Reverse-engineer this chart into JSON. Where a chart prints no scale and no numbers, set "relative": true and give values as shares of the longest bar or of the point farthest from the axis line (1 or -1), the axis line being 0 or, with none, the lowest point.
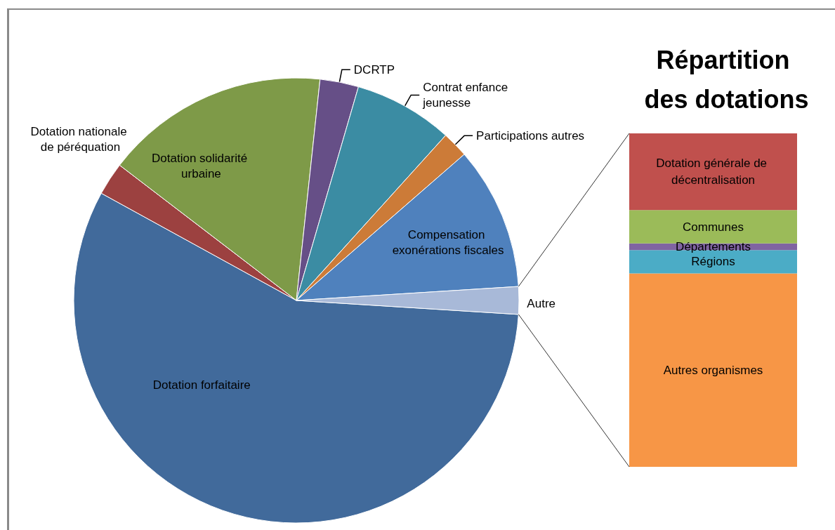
{
  "chart_data": [
    {
      "type": "pie",
      "categories": [
        "Dotation forfaitaire",
        "Dotation nationale de péréquation",
        "Dotation solidarité urbaine",
        "DCRTP",
        "Contrat enfance jeunesse",
        "Participations autres",
        "Compensation exonérations fiscales",
        "Autre"
      ],
      "values": [
        57.0,
        2.4,
        16.3,
        2.8,
        7.2,
        1.9,
        10.4,
        2.0
      ],
      "colors": [
        "#416a9b",
        "#9c4140",
        "#7e9a48",
        "#664f87",
        "#3b8ca3",
        "#cc7b38",
        "#4f81bd",
        "#a8b9d8"
      ]
    },
    {
      "type": "bar",
      "title": "Répartition des dotations",
      "categories": [
        null
      ],
      "stacked": true,
      "relative": true,
      "series": [
        {
          "name": "Autres organismes",
          "color": "#f79646",
          "values": [
            0.58
          ]
        },
        {
          "name": "Régions",
          "color": "#4bacc6",
          "values": [
            0.07
          ]
        },
        {
          "name": "Départements",
          "color": "#8064a2",
          "values": [
            0.02
          ]
        },
        {
          "name": "Communes",
          "color": "#9bbb59",
          "values": [
            0.1
          ]
        },
        {
          "name": "Dotation générale de décentralisation",
          "color": "#c0504d",
          "values": [
            0.23
          ]
        }
      ]
    }
  ]
}
